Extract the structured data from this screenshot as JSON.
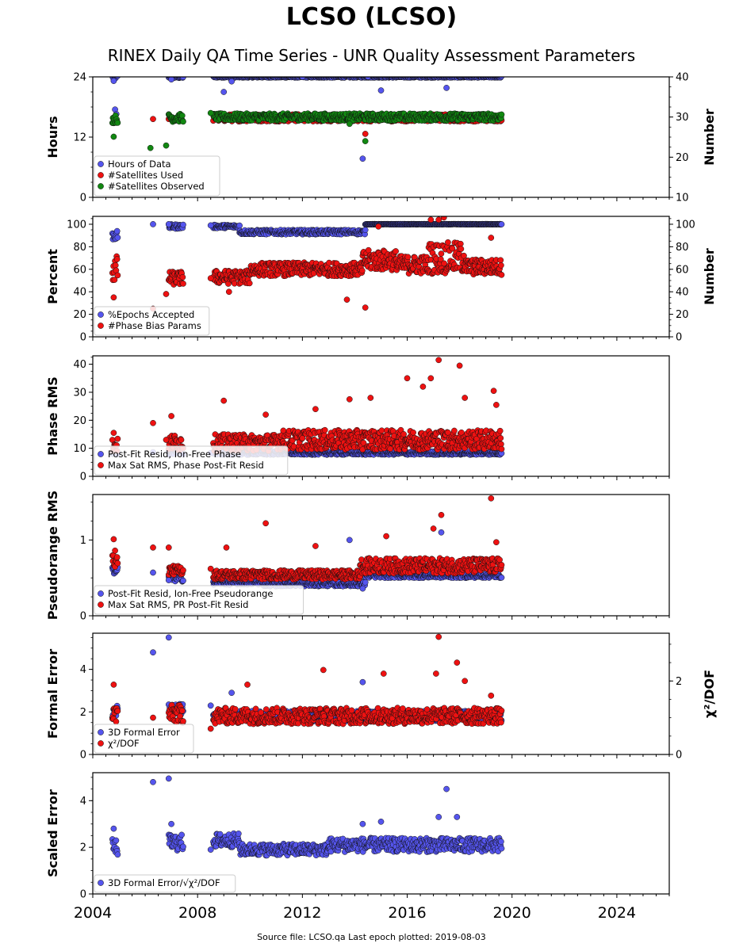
{
  "page": {
    "title": "LCSO (LCSO)",
    "subtitle": "RINEX Daily QA Time Series - UNR Quality Assessment Parameters",
    "footer": "Source file: LCSO.qa Last epoch plotted: 2019-08-03"
  },
  "colors": {
    "blue": "#5555ee",
    "red": "#ee1111",
    "green": "#118811"
  },
  "chart_data": [
    {
      "type": "scatter",
      "ylabel": "Hours",
      "ylabel_right": "Number",
      "xlim": [
        2004,
        2026
      ],
      "ylim": [
        0,
        24
      ],
      "ylim_right": [
        10,
        40
      ],
      "yticks": [
        0,
        12,
        24
      ],
      "yticks_right": [
        10,
        20,
        30,
        40
      ],
      "legend": "lower-left",
      "series": [
        {
          "name": "Hours of Data",
          "color": "blue",
          "axis": "left",
          "segments": [
            [
              2004.75,
              2004.95,
              24,
              0.4
            ],
            [
              2006.9,
              2007.45,
              24,
              0.3
            ],
            [
              2008.6,
              2019.6,
              24,
              0.15
            ]
          ],
          "points": [
            [
              2004.8,
              23.2
            ],
            [
              2004.85,
              17.5
            ],
            [
              2004.9,
              16.6
            ],
            [
              2007.0,
              23.5
            ],
            [
              2009.0,
              21
            ],
            [
              2009.3,
              23.1
            ],
            [
              2012.0,
              24
            ],
            [
              2014.5,
              24
            ],
            [
              2014.3,
              7.7
            ],
            [
              2015.0,
              21.3
            ],
            [
              2017.5,
              21.8
            ]
          ]
        },
        {
          "name": "#Satellites Used",
          "color": "red",
          "axis": "right",
          "segments": [
            [
              2008.6,
              2019.6,
              29.8,
              0.9
            ]
          ],
          "points": [
            [
              2006.3,
              29.5
            ],
            [
              2006.9,
              29.5
            ],
            [
              2013.9,
              29.0
            ],
            [
              2014.4,
              25.8
            ],
            [
              2004.8,
              28.5
            ]
          ]
        },
        {
          "name": "#Satellites Observed",
          "color": "green",
          "axis": "right",
          "segments": [
            [
              2004.75,
              2004.95,
              29.5,
              1.0
            ],
            [
              2006.9,
              2007.45,
              29.8,
              1.0
            ],
            [
              2008.6,
              2019.6,
              30.0,
              0.9
            ]
          ],
          "points": [
            [
              2004.8,
              25.1
            ],
            [
              2006.2,
              22.3
            ],
            [
              2006.8,
              22.9
            ],
            [
              2008.5,
              31
            ],
            [
              2014.4,
              24.0
            ],
            [
              2013.8,
              28.3
            ]
          ]
        }
      ]
    },
    {
      "type": "scatter",
      "ylabel": "Percent",
      "ylabel_right": "Number",
      "xlim": [
        2004,
        2026
      ],
      "ylim": [
        0,
        107
      ],
      "ylim_right": [
        0,
        107
      ],
      "yticks": [
        0,
        20,
        40,
        60,
        80,
        100
      ],
      "yticks_right": [
        0,
        20,
        40,
        60,
        80,
        100
      ],
      "legend": "lower-left",
      "series": [
        {
          "name": "%Epochs Accepted",
          "color": "blue",
          "axis": "left",
          "segments": [
            [
              2004.75,
              2004.95,
              90,
              4
            ],
            [
              2006.9,
              2007.45,
              98,
              2
            ],
            [
              2008.6,
              2009.6,
              98,
              1.5
            ],
            [
              2009.6,
              2014.4,
              93,
              2
            ],
            [
              2014.4,
              2019.6,
              100,
              0.2
            ]
          ],
          "points": [
            [
              2006.3,
              100
            ],
            [
              2006.9,
              100
            ],
            [
              2008.5,
              99
            ]
          ]
        },
        {
          "name": "#Phase Bias Params",
          "color": "red",
          "axis": "right",
          "segments": [
            [
              2004.75,
              2004.95,
              60,
              12
            ],
            [
              2006.9,
              2007.45,
              52,
              6
            ],
            [
              2008.6,
              2010.0,
              53,
              6
            ],
            [
              2010.0,
              2014.3,
              60,
              6
            ],
            [
              2014.3,
              2015.6,
              68,
              9
            ],
            [
              2015.6,
              2016.8,
              64,
              8
            ],
            [
              2016.8,
              2018.2,
              70,
              14
            ],
            [
              2018.2,
              2019.6,
              62,
              7
            ]
          ],
          "points": [
            [
              2004.8,
              35
            ],
            [
              2006.3,
              25
            ],
            [
              2006.8,
              38
            ],
            [
              2008.5,
              52
            ],
            [
              2009.2,
              40
            ],
            [
              2013.7,
              33
            ],
            [
              2014.4,
              26
            ],
            [
              2017.2,
              104
            ],
            [
              2017.4,
              106
            ],
            [
              2016.9,
              104
            ],
            [
              2014.9,
              98
            ],
            [
              2019.2,
              88
            ]
          ]
        }
      ]
    },
    {
      "type": "scatter",
      "ylabel": "Phase RMS",
      "xlim": [
        2004,
        2026
      ],
      "ylim": [
        0,
        43
      ],
      "yticks": [
        0,
        10,
        20,
        30,
        40
      ],
      "legend": "lower-left",
      "series": [
        {
          "name": "Post-Fit Resid, Ion-Free Phase",
          "color": "blue",
          "axis": "left",
          "segments": [
            [
              2004.75,
              2004.95,
              8.5,
              0.8
            ],
            [
              2006.9,
              2007.45,
              8.5,
              0.8
            ],
            [
              2008.6,
              2019.6,
              8.3,
              0.6
            ]
          ],
          "points": [
            [
              2006.3,
              8.6
            ],
            [
              2008.5,
              8.3
            ]
          ]
        },
        {
          "name": "Max Sat RMS, Phase Post-Fit Resid",
          "color": "red",
          "axis": "left",
          "segments": [
            [
              2004.75,
              2004.95,
              11,
              2.5
            ],
            [
              2006.9,
              2007.45,
              12,
              3
            ],
            [
              2008.6,
              2011.0,
              12,
              3
            ],
            [
              2011.0,
              2019.6,
              13,
              3.5
            ]
          ],
          "points": [
            [
              2004.8,
              15.5
            ],
            [
              2006.3,
              19
            ],
            [
              2006.8,
              13
            ],
            [
              2007.0,
              21.5
            ],
            [
              2009.0,
              27
            ],
            [
              2013.8,
              27.5
            ],
            [
              2014.6,
              28
            ],
            [
              2016.0,
              35
            ],
            [
              2016.6,
              32
            ],
            [
              2016.9,
              35
            ],
            [
              2017.2,
              41.5
            ],
            [
              2018.0,
              39.5
            ],
            [
              2018.2,
              28
            ],
            [
              2019.3,
              30.5
            ],
            [
              2019.4,
              25.5
            ],
            [
              2010.6,
              22
            ],
            [
              2012.5,
              24
            ]
          ]
        }
      ]
    },
    {
      "type": "scatter",
      "ylabel": "Pseudorange RMS",
      "xlim": [
        2004,
        2026
      ],
      "ylim": [
        0,
        1.6
      ],
      "yticks": [
        0,
        1
      ],
      "legend": "lower-left",
      "series": [
        {
          "name": "Post-Fit Resid, Ion-Free Pseudorange",
          "color": "blue",
          "axis": "left",
          "segments": [
            [
              2004.75,
              2004.95,
              0.6,
              0.05
            ],
            [
              2006.9,
              2007.45,
              0.5,
              0.05
            ],
            [
              2008.6,
              2010.5,
              0.44,
              0.03
            ],
            [
              2010.5,
              2014.4,
              0.42,
              0.03
            ],
            [
              2014.4,
              2019.6,
              0.53,
              0.03
            ]
          ],
          "points": [
            [
              2006.3,
              0.57
            ],
            [
              2006.9,
              0.47
            ],
            [
              2013.8,
              1.0
            ],
            [
              2017.3,
              1.1
            ],
            [
              2014.3,
              0.36
            ]
          ]
        },
        {
          "name": "Max Sat RMS, PR Post-Fit Resid",
          "color": "red",
          "axis": "left",
          "segments": [
            [
              2004.75,
              2004.95,
              0.72,
              0.08
            ],
            [
              2006.9,
              2007.45,
              0.6,
              0.06
            ],
            [
              2008.6,
              2014.2,
              0.54,
              0.06
            ],
            [
              2014.2,
              2019.6,
              0.66,
              0.1
            ]
          ],
          "points": [
            [
              2004.8,
              1.01
            ],
            [
              2004.85,
              0.86
            ],
            [
              2006.3,
              0.9
            ],
            [
              2006.9,
              0.9
            ],
            [
              2008.5,
              0.62
            ],
            [
              2009.1,
              0.9
            ],
            [
              2010.6,
              1.22
            ],
            [
              2012.5,
              0.92
            ],
            [
              2015.2,
              1.05
            ],
            [
              2017.0,
              1.15
            ],
            [
              2017.3,
              1.33
            ],
            [
              2019.2,
              1.55
            ],
            [
              2019.4,
              0.97
            ]
          ]
        }
      ]
    },
    {
      "type": "scatter",
      "ylabel": "Formal Error",
      "ylabel_right": "χ²/DOF",
      "xlim": [
        2004,
        2026
      ],
      "ylim": [
        0,
        5.7
      ],
      "ylim_right": [
        0,
        3.3
      ],
      "yticks": [
        0,
        2,
        4
      ],
      "yticks_right": [
        0,
        2
      ],
      "legend": "lower-left",
      "series": [
        {
          "name": "3D Formal Error",
          "color": "blue",
          "axis": "left",
          "segments": [
            [
              2004.75,
              2004.95,
              2.0,
              0.3
            ],
            [
              2006.9,
              2007.45,
              2.1,
              0.3
            ],
            [
              2008.6,
              2019.6,
              1.8,
              0.25
            ]
          ],
          "points": [
            [
              2006.3,
              4.8
            ],
            [
              2006.9,
              5.5
            ],
            [
              2008.5,
              2.3
            ],
            [
              2009.3,
              2.9
            ],
            [
              2014.3,
              3.4
            ]
          ]
        },
        {
          "name": "χ²/DOF",
          "color": "red",
          "axis": "right",
          "segments": [
            [
              2004.75,
              2004.95,
              1.1,
              0.25
            ],
            [
              2006.9,
              2007.45,
              1.1,
              0.25
            ],
            [
              2008.6,
              2019.6,
              1.05,
              0.22
            ]
          ],
          "points": [
            [
              2004.8,
              1.9
            ],
            [
              2006.3,
              1.0
            ],
            [
              2008.5,
              0.7
            ],
            [
              2009.9,
              1.9
            ],
            [
              2012.8,
              2.3
            ],
            [
              2015.1,
              2.2
            ],
            [
              2017.1,
              2.2
            ],
            [
              2017.2,
              3.2
            ],
            [
              2017.9,
              2.5
            ],
            [
              2018.2,
              2.0
            ],
            [
              2019.2,
              1.6
            ]
          ]
        }
      ]
    },
    {
      "type": "scatter",
      "ylabel": "Scaled Error",
      "xlim": [
        2004,
        2026
      ],
      "ylim": [
        0,
        5.2
      ],
      "yticks": [
        0,
        2,
        4
      ],
      "legend": "lower-left",
      "series": [
        {
          "name": "3D Formal Error/√χ²/DOF",
          "color": "blue",
          "axis": "left",
          "segments": [
            [
              2004.75,
              2004.95,
              2.0,
              0.35
            ],
            [
              2006.9,
              2007.45,
              2.2,
              0.35
            ],
            [
              2008.6,
              2009.6,
              2.3,
              0.3
            ],
            [
              2009.6,
              2013.0,
              1.9,
              0.25
            ],
            [
              2013.0,
              2019.6,
              2.1,
              0.3
            ]
          ],
          "points": [
            [
              2004.8,
              2.8
            ],
            [
              2006.3,
              4.8
            ],
            [
              2006.9,
              4.95
            ],
            [
              2007.0,
              3.0
            ],
            [
              2008.5,
              1.9
            ],
            [
              2014.3,
              3.0
            ],
            [
              2015.0,
              3.1
            ],
            [
              2017.2,
              3.3
            ],
            [
              2017.5,
              4.5
            ],
            [
              2017.9,
              3.3
            ]
          ]
        }
      ]
    }
  ],
  "xaxis": {
    "xlim": [
      2004,
      2026
    ],
    "ticks": [
      "2004",
      "2008",
      "2012",
      "2016",
      "2020",
      "2024"
    ]
  }
}
